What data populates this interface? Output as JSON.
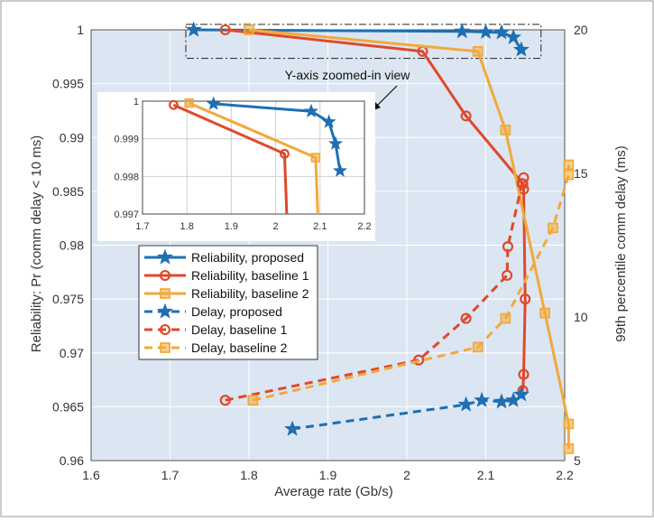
{
  "chart_data": {
    "type": "line",
    "xlabel": "Average rate (Gb/s)",
    "ylabel_left": "Reliability: Pr (comm delay < 10 ms)",
    "ylabel_right": "99th  percentile comm delay (ms)",
    "xlim": [
      1.6,
      2.2
    ],
    "ylim_left": [
      0.96,
      1.0
    ],
    "ylim_right": [
      5,
      20
    ],
    "x_ticks": [
      "1.6",
      "1.7",
      "1.8",
      "1.9",
      "2",
      "2.1",
      "2.2"
    ],
    "y_left_ticks": [
      "0.96",
      "0.965",
      "0.97",
      "0.975",
      "0.98",
      "0.985",
      "0.99",
      "0.995",
      "1"
    ],
    "y_right_ticks": [
      "5",
      "10",
      "15",
      "20"
    ],
    "grid": true,
    "legend_position": "center-left",
    "colors": {
      "proposed": "#1f6fb2",
      "baseline1": "#e0482a",
      "baseline2": "#f2a93b",
      "plot_bg": "#dbe6f2",
      "grid": "#ffffff"
    },
    "series": [
      {
        "name": "Reliability, proposed",
        "axis": "left",
        "style": "solid",
        "marker": "star",
        "color_key": "proposed",
        "x": [
          1.73,
          2.07,
          2.1,
          2.12,
          2.135,
          2.145
        ],
        "y": [
          1.0,
          0.99985,
          0.9998,
          0.99975,
          0.9993,
          0.99815
        ]
      },
      {
        "name": "Reliability, baseline 1",
        "axis": "left",
        "style": "solid",
        "marker": "circle",
        "color_key": "baseline1",
        "x": [
          1.77,
          2.02,
          2.075,
          2.147,
          2.148,
          2.15,
          2.148,
          2.147
        ],
        "y": [
          1.0,
          0.998,
          0.992,
          0.9857,
          0.9852,
          0.975,
          0.968,
          0.9665
        ]
      },
      {
        "name": "Reliability, baseline 2",
        "axis": "left",
        "style": "solid",
        "marker": "square",
        "color_key": "baseline2",
        "x": [
          1.8,
          2.09,
          2.125,
          2.175,
          2.205,
          2.205
        ],
        "y": [
          1.0,
          0.998,
          0.9907,
          0.9737,
          0.9634,
          0.9611
        ]
      },
      {
        "name": "Delay, proposed",
        "axis": "right",
        "style": "dashed",
        "marker": "star",
        "color_key": "proposed",
        "x": [
          1.855,
          2.075,
          2.095,
          2.12,
          2.135,
          2.145
        ],
        "y": [
          6.1,
          6.95,
          7.1,
          7.05,
          7.1,
          7.3
        ]
      },
      {
        "name": "Delay, baseline 1",
        "axis": "right",
        "style": "dashed",
        "marker": "circle",
        "color_key": "baseline1",
        "x": [
          1.77,
          2.015,
          2.075,
          2.127,
          2.128,
          2.146,
          2.148
        ],
        "y": [
          7.1,
          8.5,
          9.95,
          11.45,
          12.45,
          14.65,
          14.85
        ]
      },
      {
        "name": "Delay, baseline 2",
        "axis": "right",
        "style": "dashed",
        "marker": "square",
        "color_key": "baseline2",
        "x": [
          1.805,
          2.09,
          2.125,
          2.185,
          2.205,
          2.205
        ],
        "y": [
          7.1,
          8.95,
          9.95,
          13.1,
          14.95,
          15.3
        ]
      }
    ],
    "zoom_box": {
      "x_range": [
        1.72,
        2.17
      ],
      "y_range": [
        0.99735,
        1.0005
      ]
    },
    "annotation": "Y-axis zoomed-in view",
    "inset": {
      "xlim": [
        1.7,
        2.2
      ],
      "ylim": [
        0.997,
        1.0
      ],
      "x_ticks": [
        "1.7",
        "1.8",
        "1.9",
        "2",
        "2.1",
        "2.2"
      ],
      "y_ticks": [
        "0.997",
        "0.998",
        "0.999",
        "1"
      ],
      "series": [
        {
          "color_key": "proposed",
          "marker": "star",
          "x": [
            1.86,
            2.08,
            2.12,
            2.135,
            2.145
          ],
          "y": [
            0.99993,
            0.99973,
            0.99945,
            0.99887,
            0.99815
          ]
        },
        {
          "color_key": "baseline1",
          "marker": "circle",
          "x": [
            1.77,
            2.02,
            2.025
          ],
          "y": [
            0.9999,
            0.9986,
            0.997
          ]
        },
        {
          "color_key": "baseline2",
          "marker": "square",
          "x": [
            1.805,
            2.09,
            2.095
          ],
          "y": [
            0.99995,
            0.9985,
            0.997
          ]
        }
      ]
    }
  }
}
